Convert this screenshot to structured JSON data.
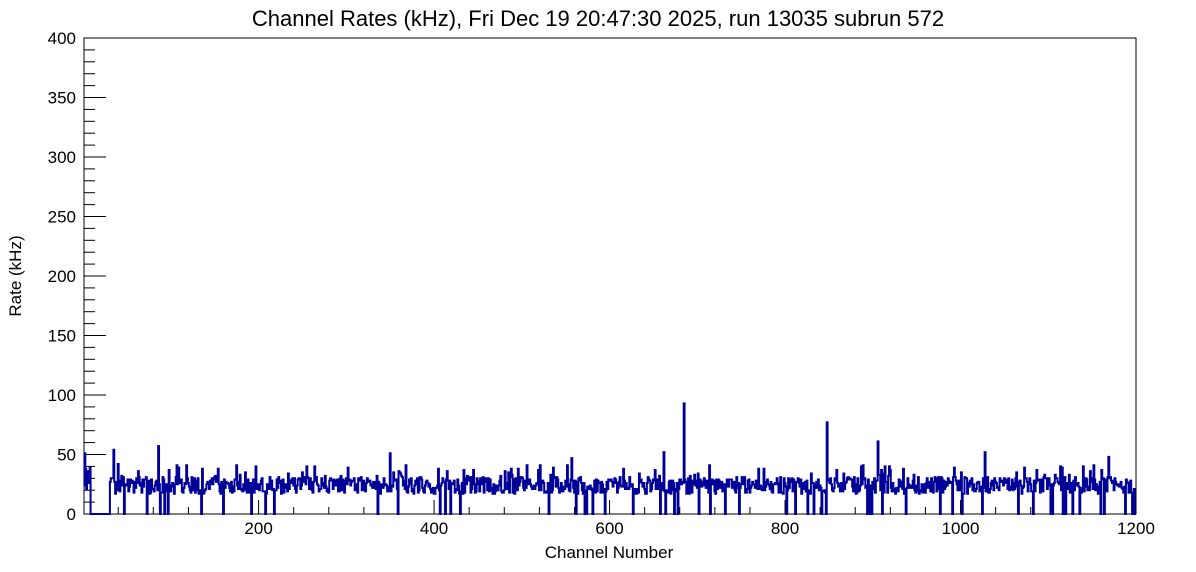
{
  "chart_data": {
    "type": "line",
    "title": "Channel Rates (kHz), Fri Dec 19 20:47:30 2025, run 13035 subrun 572",
    "xlabel": "Channel Number",
    "ylabel": "Rate (kHz)",
    "xlim": [
      1,
      1200
    ],
    "ylim": [
      0,
      400
    ],
    "x_major_ticks": [
      200,
      400,
      600,
      800,
      1000,
      1200
    ],
    "y_major_ticks": [
      0,
      50,
      100,
      150,
      200,
      250,
      300,
      350,
      400
    ],
    "x_tick_labels": [
      "200",
      "400",
      "600",
      "800",
      "1000",
      "1200"
    ],
    "y_tick_labels": [
      "0",
      "50",
      "100",
      "150",
      "200",
      "250",
      "300",
      "350",
      "400"
    ],
    "grid": false,
    "legend": "none",
    "series": [
      {
        "color": "#000099",
        "step": true,
        "segments": [
          {
            "from": 1,
            "to": 8,
            "base": 30,
            "spread": 22
          },
          {
            "from": 9,
            "to": 30,
            "base": 0,
            "spread": 0
          },
          {
            "from": 31,
            "to": 1198,
            "base": 24,
            "spread": 16
          },
          {
            "from": 1199,
            "to": 1200,
            "base": 0,
            "spread": 0
          }
        ],
        "spikes": [
          {
            "x": 685,
            "y": 93
          },
          {
            "x": 848,
            "y": 77
          },
          {
            "x": 906,
            "y": 61
          },
          {
            "x": 662,
            "y": 52
          },
          {
            "x": 86,
            "y": 57
          },
          {
            "x": 1028,
            "y": 52
          },
          {
            "x": 1169,
            "y": 48
          },
          {
            "x": 35,
            "y": 54
          },
          {
            "x": 350,
            "y": 51
          },
          {
            "x": 557,
            "y": 47
          }
        ],
        "dropouts": [
          47,
          73,
          88,
          93,
          97,
          135,
          160,
          192,
          208,
          218,
          336,
          359,
          407,
          413,
          419,
          430,
          531,
          562,
          572,
          574,
          581,
          595,
          627,
          658,
          664,
          674,
          678,
          702,
          715,
          732,
          748,
          802,
          812,
          826,
          833,
          842,
          847,
          894,
          897,
          899,
          911,
          938,
          977,
          991,
          1002,
          1025,
          1066,
          1083,
          1103,
          1105,
          1117,
          1120,
          1128,
          1136,
          1160,
          1164,
          1188,
          1196
        ]
      }
    ]
  }
}
